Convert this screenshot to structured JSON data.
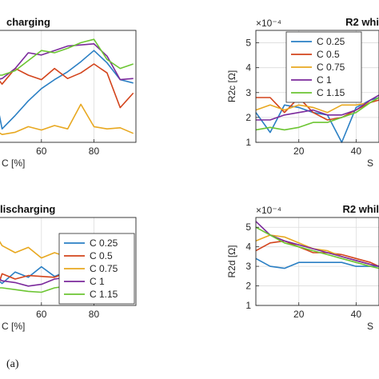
{
  "figure_caption": "(a)",
  "chart_data": [
    {
      "id": "r1_charging",
      "type": "line",
      "title": "charging",
      "xlabel": "C [%]",
      "ylabel": "",
      "exponent": "",
      "xlim": [
        43,
        96
      ],
      "ylim": [
        0,
        1
      ],
      "xticks": [
        60,
        80
      ],
      "yticks": [],
      "grid": true,
      "legend": "none",
      "x": [
        43,
        45,
        50,
        55,
        60,
        65,
        70,
        75,
        80,
        85,
        90,
        95
      ],
      "series": [
        {
          "name": "C 0.25",
          "color": "#2a7fc4",
          "values": [
            0.36,
            0.12,
            0.24,
            0.37,
            0.48,
            0.56,
            0.63,
            0.72,
            0.82,
            0.71,
            0.56,
            0.53
          ]
        },
        {
          "name": "C 0.5",
          "color": "#d3441c",
          "values": [
            0.58,
            0.52,
            0.66,
            0.6,
            0.56,
            0.66,
            0.57,
            0.62,
            0.7,
            0.62,
            0.31,
            0.44
          ]
        },
        {
          "name": "C 0.75",
          "color": "#e8a820",
          "values": [
            0.1,
            0.07,
            0.09,
            0.14,
            0.11,
            0.15,
            0.12,
            0.34,
            0.14,
            0.12,
            0.13,
            0.08
          ]
        },
        {
          "name": "C 1",
          "color": "#7b2a9c",
          "values": [
            0.56,
            0.57,
            0.66,
            0.8,
            0.78,
            0.82,
            0.86,
            0.87,
            0.88,
            0.77,
            0.56,
            0.57
          ]
        },
        {
          "name": "C 1.15",
          "color": "#6cc532",
          "values": [
            0.6,
            0.6,
            0.64,
            0.73,
            0.82,
            0.8,
            0.84,
            0.89,
            0.92,
            0.74,
            0.66,
            0.7
          ]
        }
      ]
    },
    {
      "id": "r2_charging",
      "type": "line",
      "title": "R2 whi",
      "xlabel": "S",
      "ylabel": "R2c [Ω]",
      "exponent": "×10⁻⁴",
      "xlim": [
        5,
        48
      ],
      "ylim": [
        1,
        5.5
      ],
      "xticks": [
        20,
        40
      ],
      "yticks": [
        1,
        2,
        3,
        4,
        5
      ],
      "grid": true,
      "legend": "top-left",
      "x": [
        5,
        10,
        15,
        20,
        25,
        30,
        35,
        40,
        45,
        48
      ],
      "series": [
        {
          "name": "C 0.25",
          "color": "#2a7fc4",
          "values": [
            2.2,
            1.4,
            2.5,
            2.4,
            2.2,
            2.1,
            1.0,
            2.4,
            2.7,
            2.8
          ]
        },
        {
          "name": "C 0.5",
          "color": "#d3441c",
          "values": [
            2.8,
            2.8,
            2.2,
            2.8,
            2.2,
            1.9,
            2.0,
            2.3,
            2.6,
            2.7
          ]
        },
        {
          "name": "C 0.75",
          "color": "#e8a820",
          "values": [
            2.3,
            2.5,
            2.3,
            2.5,
            2.4,
            2.2,
            2.5,
            2.5,
            2.6,
            2.8
          ]
        },
        {
          "name": "C 1",
          "color": "#7b2a9c",
          "values": [
            1.9,
            1.9,
            2.1,
            2.2,
            2.3,
            2.1,
            2.1,
            2.3,
            2.7,
            2.9
          ]
        },
        {
          "name": "C 1.15",
          "color": "#6cc532",
          "values": [
            1.5,
            1.6,
            1.5,
            1.6,
            1.8,
            1.8,
            2.0,
            2.2,
            2.6,
            2.8
          ]
        }
      ]
    },
    {
      "id": "r1_discharging",
      "type": "line",
      "title": "lischarging",
      "xlabel": "C [%]",
      "ylabel": "",
      "exponent": "",
      "xlim": [
        43,
        96
      ],
      "ylim": [
        0,
        1
      ],
      "xticks": [
        60,
        80
      ],
      "yticks": [],
      "grid": true,
      "legend": "bottom-right",
      "x": [
        43,
        45,
        50,
        55,
        60,
        65,
        70,
        75,
        80,
        85,
        90,
        95
      ],
      "series": [
        {
          "name": "C 0.25",
          "color": "#2a7fc4",
          "values": [
            0.3,
            0.25,
            0.38,
            0.32,
            0.44,
            0.33,
            0.39,
            0.38,
            0.39,
            0.46,
            0.52,
            0.62
          ]
        },
        {
          "name": "C 0.5",
          "color": "#d3441c",
          "values": [
            0.18,
            0.36,
            0.3,
            0.34,
            0.33,
            0.32,
            0.38,
            0.4,
            0.44,
            0.52,
            0.55,
            0.78
          ]
        },
        {
          "name": "C 0.75",
          "color": "#e8a820",
          "values": [
            0.78,
            0.68,
            0.6,
            0.66,
            0.54,
            0.6,
            0.55,
            0.64,
            0.52,
            0.58,
            0.55,
            0.62
          ]
        },
        {
          "name": "C 1",
          "color": "#7b2a9c",
          "values": [
            0.32,
            0.28,
            0.26,
            0.22,
            0.24,
            0.3,
            0.32,
            0.34,
            0.38,
            0.44,
            0.52,
            0.6
          ]
        },
        {
          "name": "C 1.15",
          "color": "#6cc532",
          "values": [
            0.2,
            0.2,
            0.18,
            0.16,
            0.15,
            0.2,
            0.22,
            0.24,
            0.28,
            0.36,
            0.44,
            0.52
          ]
        }
      ]
    },
    {
      "id": "r2_discharging",
      "type": "line",
      "title": "R2 whil",
      "xlabel": "S",
      "ylabel": "R2d [Ω]",
      "exponent": "×10⁻⁴",
      "xlim": [
        5,
        48
      ],
      "ylim": [
        1,
        5.5
      ],
      "xticks": [
        20,
        40
      ],
      "yticks": [
        1,
        2,
        3,
        4,
        5
      ],
      "grid": true,
      "legend": "none",
      "x": [
        5,
        10,
        15,
        20,
        25,
        30,
        35,
        40,
        45,
        48
      ],
      "series": [
        {
          "name": "C 0.25",
          "color": "#2a7fc4",
          "values": [
            3.4,
            3.0,
            2.9,
            3.2,
            3.2,
            3.2,
            3.2,
            3.0,
            3.0,
            3.0
          ]
        },
        {
          "name": "C 0.5",
          "color": "#d3441c",
          "values": [
            3.8,
            4.2,
            4.3,
            4.0,
            3.7,
            3.7,
            3.6,
            3.4,
            3.2,
            3.0
          ]
        },
        {
          "name": "C 0.75",
          "color": "#e8a820",
          "values": [
            4.3,
            4.6,
            4.5,
            4.2,
            3.9,
            3.8,
            3.5,
            3.3,
            3.1,
            3.0
          ]
        },
        {
          "name": "C 1",
          "color": "#7b2a9c",
          "values": [
            5.3,
            4.6,
            4.3,
            4.1,
            3.9,
            3.7,
            3.5,
            3.3,
            3.1,
            3.0
          ]
        },
        {
          "name": "C 1.15",
          "color": "#6cc532",
          "values": [
            5.0,
            4.6,
            4.2,
            4.0,
            3.8,
            3.6,
            3.4,
            3.2,
            3.0,
            2.9
          ]
        }
      ]
    }
  ]
}
